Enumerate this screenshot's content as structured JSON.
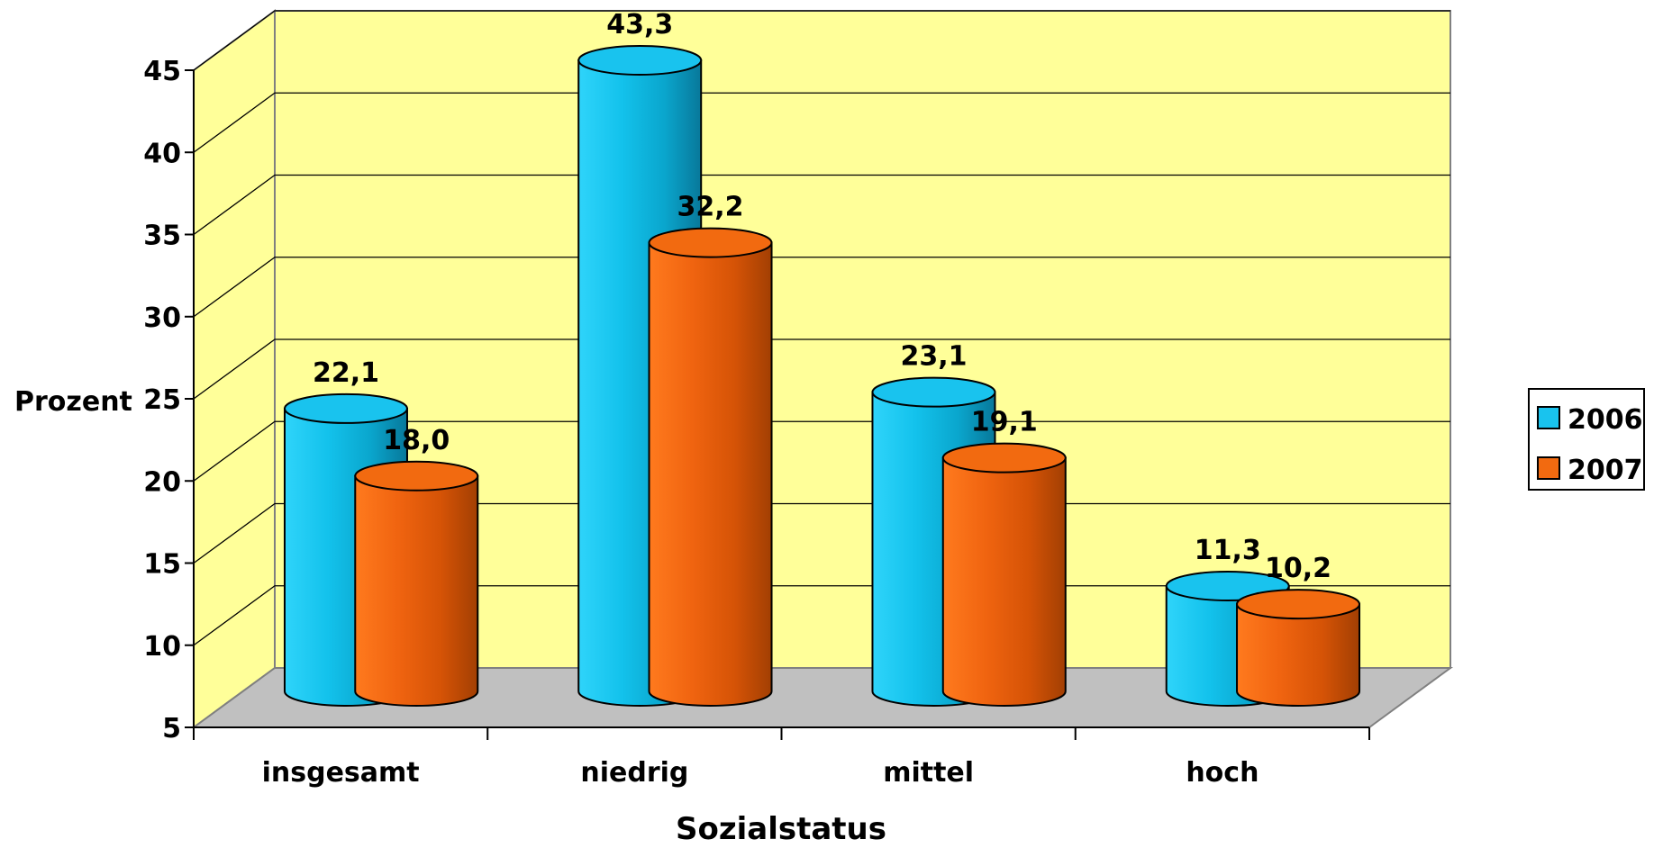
{
  "chart_data": {
    "type": "bar",
    "xlabel": "Sozialstatus",
    "ylabel": "Prozent",
    "ylim": [
      5,
      45
    ],
    "yticks": [
      "5",
      "10",
      "15",
      "20",
      "25",
      "30",
      "35",
      "40",
      "45"
    ],
    "grid": true,
    "legend_placement": "right",
    "categories": [
      "insgesamt",
      "niedrig",
      "mittel",
      "hoch"
    ],
    "series": [
      {
        "name": "2006",
        "values": [
          22.1,
          43.3,
          23.1,
          11.3
        ],
        "labels": [
          "22,1",
          "43,3",
          "23,1",
          "11,3"
        ],
        "color": "#19C3EE"
      },
      {
        "name": "2007",
        "values": [
          18.0,
          32.2,
          19.1,
          10.2
        ],
        "labels": [
          "18,0",
          "32,2",
          "19,1",
          "10,2"
        ],
        "color": "#F26A10"
      }
    ],
    "colors": {
      "wall": "#FFFF99",
      "floor": "#C0C0C0"
    }
  }
}
